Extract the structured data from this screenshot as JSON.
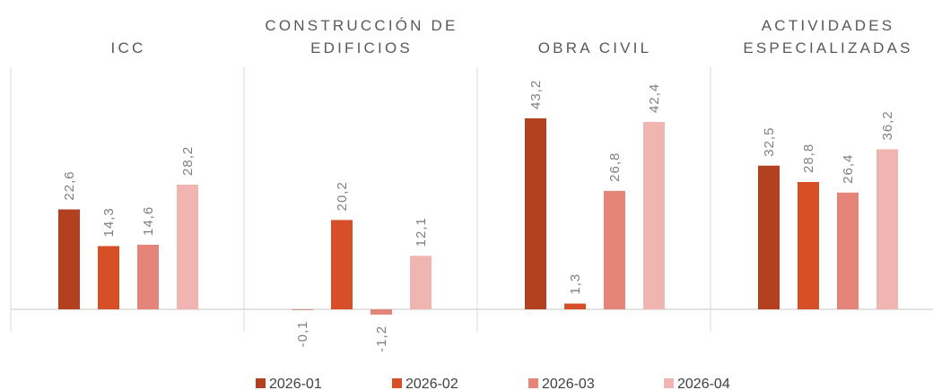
{
  "chart_data": {
    "type": "bar",
    "categories": [
      "ICC",
      "CONSTRUCCIÓN DE EDIFICIOS",
      "OBRA CIVIL",
      "ACTIVIDADES ESPECIALIZADAS"
    ],
    "series": [
      {
        "name": "2026-01",
        "color": "#b3401f",
        "values": [
          22.6,
          -0.1,
          43.2,
          32.5
        ],
        "value_labels": [
          "22,6",
          "-0,1",
          "43,2",
          "32,5"
        ]
      },
      {
        "name": "2026-02",
        "color": "#d64f26",
        "values": [
          14.3,
          20.2,
          1.3,
          28.8
        ],
        "value_labels": [
          "14,3",
          "20,2",
          "1,3",
          "28,8"
        ]
      },
      {
        "name": "2026-03",
        "color": "#e5857a",
        "values": [
          14.6,
          -1.2,
          26.8,
          26.4
        ],
        "value_labels": [
          "14,6",
          "-1,2",
          "26,8",
          "26,4"
        ]
      },
      {
        "name": "2026-04",
        "color": "#f0b5b0",
        "values": [
          28.2,
          12.1,
          42.4,
          36.2
        ],
        "value_labels": [
          "28,2",
          "12,1",
          "42,4",
          "36,2"
        ]
      }
    ]
  }
}
